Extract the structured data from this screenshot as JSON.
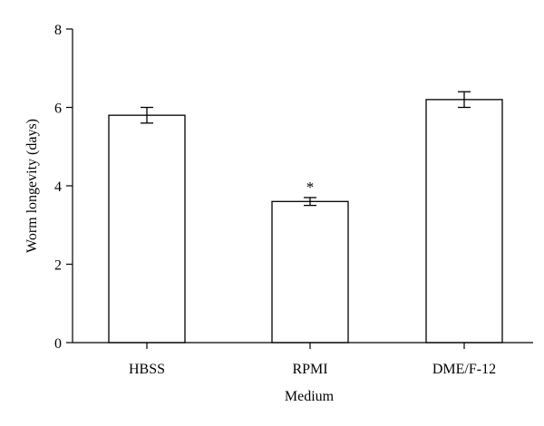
{
  "chart_data": {
    "type": "bar",
    "categories": [
      "HBSS",
      "RPMI",
      "DME/F-12"
    ],
    "values": [
      5.8,
      3.6,
      6.2
    ],
    "errors": [
      0.2,
      0.1,
      0.2
    ],
    "annotations": [
      "",
      "*",
      ""
    ],
    "xlabel": "Medium",
    "ylabel": "Worm longevity (days)",
    "ylim": [
      0,
      8
    ],
    "yticks": [
      0,
      2,
      4,
      6,
      8
    ],
    "grid": false,
    "colors": {
      "bar_fill": "#ffffff",
      "bar_stroke": "#000000"
    }
  }
}
